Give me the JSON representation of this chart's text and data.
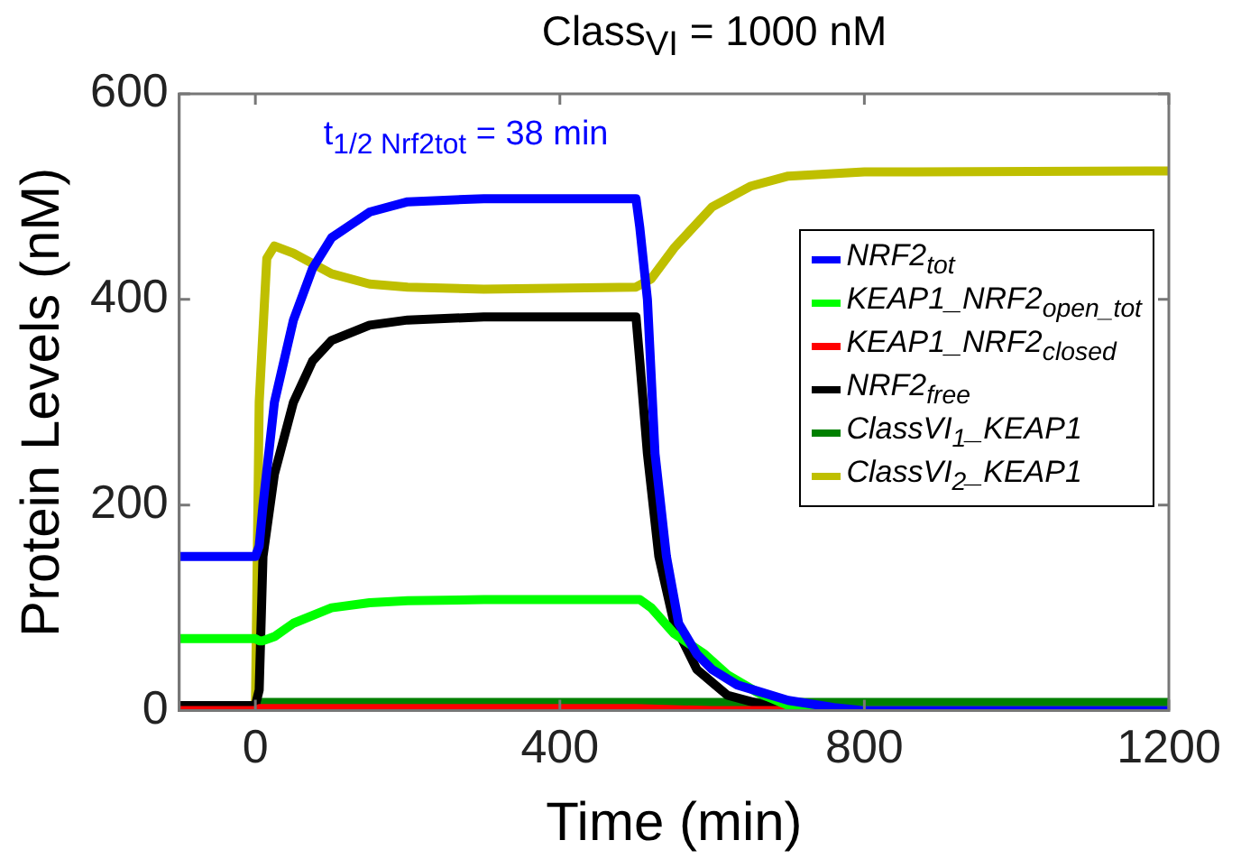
{
  "chart_data": {
    "type": "line",
    "title": "Class$_{VI}$ = 1000 nM",
    "xlabel": "Time (min)",
    "ylabel": "Protein Levels (nM)",
    "annotations": [
      "t$_{1/2 Nrf2tot}$ = 38 min"
    ],
    "xlim": [
      -100,
      1200
    ],
    "xticks": [
      0,
      400,
      800,
      1200
    ],
    "ylim": [
      0,
      600
    ],
    "yticks": [
      0,
      200,
      400,
      600
    ],
    "grid": false,
    "legend": "right",
    "marker": "none",
    "line_style": "solid",
    "series": [
      {
        "name": "NRF2$_{tot}$",
        "color": "#0000ff",
        "x": [
          -100,
          0,
          5,
          10,
          25,
          50,
          75,
          100,
          150,
          200,
          300,
          500,
          505,
          515,
          525,
          540,
          556,
          580,
          600,
          633,
          700,
          760,
          800,
          1200
        ],
        "values": [
          150,
          150,
          160,
          200,
          300,
          380,
          430,
          460,
          485,
          495,
          498,
          498,
          470,
          400,
          250,
          150,
          85,
          55,
          40,
          25,
          10,
          3,
          0,
          0
        ]
      },
      {
        "name": "KEAP1_NRF2$_{open_tot}$",
        "color": "#00ff00",
        "x": [
          -100,
          0,
          5,
          10,
          25,
          50,
          100,
          150,
          200,
          300,
          500,
          505,
          520,
          550,
          590,
          620,
          659,
          700,
          750,
          800,
          1200
        ],
        "values": [
          70,
          70,
          68,
          68,
          72,
          85,
          100,
          105,
          107,
          108,
          108,
          108,
          100,
          75,
          55,
          35,
          18,
          5,
          1,
          0,
          0
        ]
      },
      {
        "name": "KEAP1_NRF2$_{closed}$",
        "color": "#ff0000",
        "x": [
          -100,
          0,
          5,
          500,
          550,
          600,
          1200
        ],
        "values": [
          0,
          0,
          2,
          2,
          1,
          0,
          0
        ]
      },
      {
        "name": "NRF2$_{free}$",
        "color": "#000000",
        "x": [
          -100,
          0,
          5,
          10,
          25,
          50,
          75,
          100,
          150,
          200,
          300,
          500,
          505,
          515,
          530,
          550,
          580,
          620,
          680,
          750,
          1200
        ],
        "values": [
          5,
          5,
          20,
          150,
          230,
          300,
          340,
          360,
          375,
          380,
          383,
          383,
          340,
          250,
          150,
          85,
          40,
          15,
          3,
          0,
          0
        ]
      },
      {
        "name": "ClassVI$_{1}$_KEAP1",
        "color": "#008000",
        "x": [
          -100,
          0,
          5,
          1200
        ],
        "values": [
          0,
          0,
          8,
          8
        ]
      },
      {
        "name": "ClassVI$_{2}$_KEAP1",
        "color": "#bfbf00",
        "x": [
          -100,
          0,
          5,
          15,
          25,
          50,
          100,
          150,
          200,
          300,
          500,
          520,
          550,
          600,
          650,
          700,
          800,
          1200
        ],
        "values": [
          0,
          0,
          300,
          440,
          452,
          445,
          425,
          415,
          412,
          410,
          412,
          420,
          450,
          490,
          510,
          520,
          524,
          525
        ]
      }
    ]
  }
}
